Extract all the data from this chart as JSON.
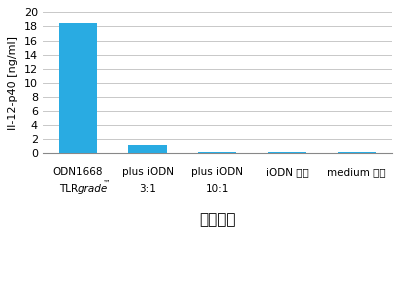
{
  "categories_line1": [
    "ODN1668",
    "plus iODN",
    "plus iODN",
    "iODN のみ",
    "medium のみ"
  ],
  "categories_line2": [
    "TLR<grade>™",
    "3:1",
    "10:1",
    "",
    ""
  ],
  "values": [
    18.5,
    1.2,
    0.18,
    0.18,
    0.15
  ],
  "bar_color": "#29ABE2",
  "ylabel": "Il-12-p40 [ng/ml]",
  "xlabel": "サンプル",
  "ylim": [
    0,
    20
  ],
  "yticks": [
    0,
    2,
    4,
    6,
    8,
    10,
    12,
    14,
    16,
    18,
    20
  ],
  "background_color": "#ffffff",
  "grid_color": "#c8c8c8",
  "bar_width": 0.55
}
